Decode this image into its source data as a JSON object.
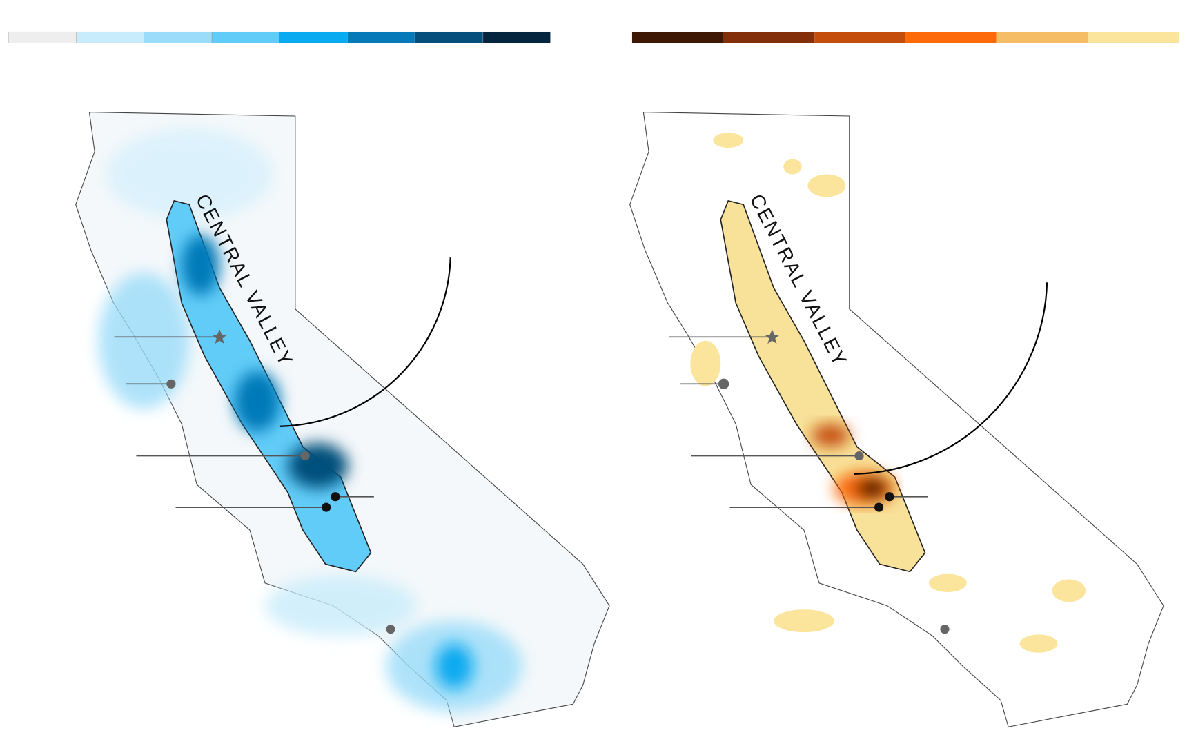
{
  "maps": [
    {
      "label": "CENTRAL VALLEY"
    },
    {
      "label": "CENTRAL VALLEY"
    }
  ]
}
